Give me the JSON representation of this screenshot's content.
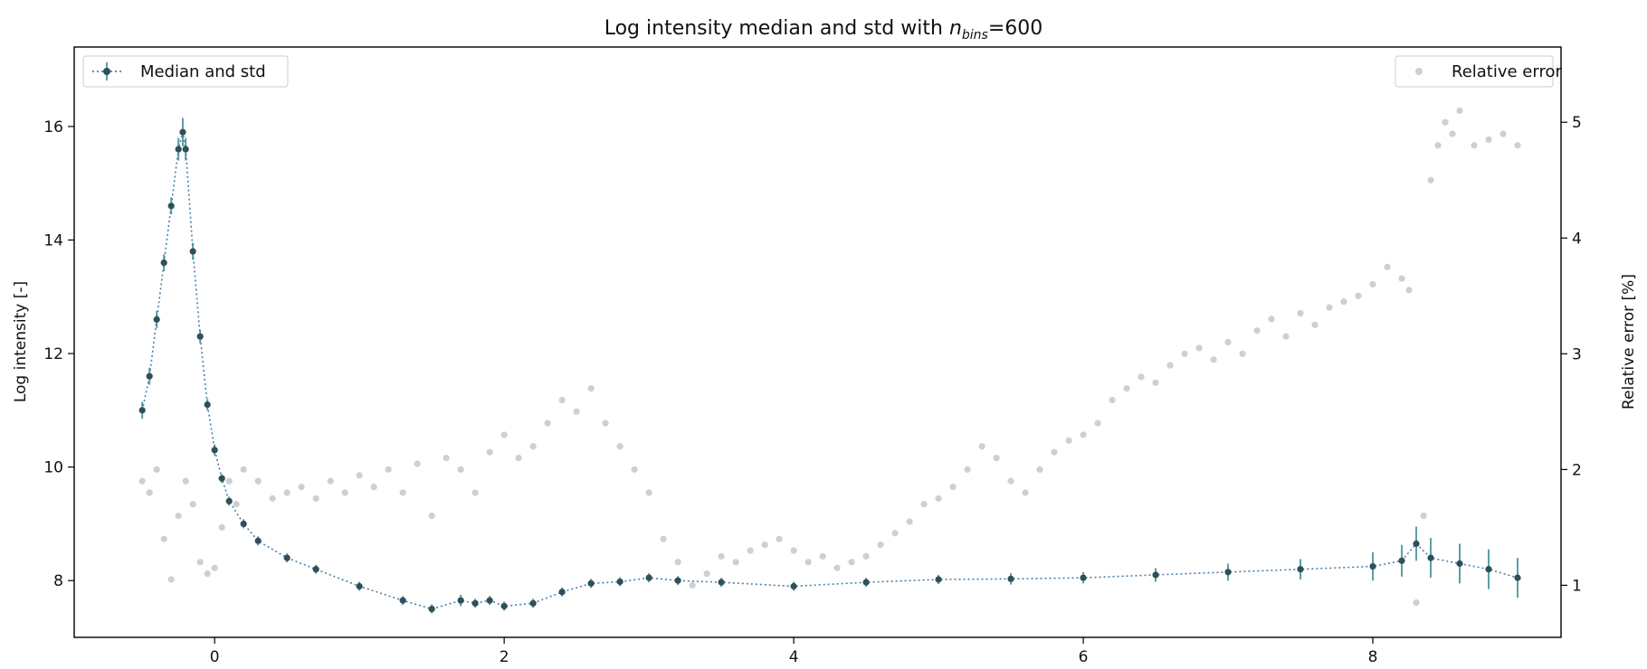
{
  "chart_data": {
    "type": "scatter",
    "title_parts": {
      "before": "Log intensity median and std with ",
      "n": "n",
      "sub": "bins",
      "after": "=600"
    },
    "xlabel": "",
    "ylabel_left": "Log intensity [-]",
    "ylabel_right": "Relative error [%]",
    "xlim": [
      -0.97,
      9.3
    ],
    "ylim_left": [
      7.0,
      17.4
    ],
    "ylim_right": [
      0.55,
      5.65
    ],
    "x_ticks": [
      0,
      2,
      4,
      6,
      8
    ],
    "x_tick_labels": [
      "0",
      "2",
      "4",
      "6",
      "8"
    ],
    "y_left_ticks": [
      8,
      10,
      12,
      14,
      16
    ],
    "y_left_tick_labels": [
      "8",
      "10",
      "12",
      "14",
      "16"
    ],
    "y_right_ticks": [
      1,
      2,
      3,
      4,
      5
    ],
    "y_right_tick_labels": [
      "1",
      "2",
      "3",
      "4",
      "5"
    ],
    "grid": false,
    "legend_left": {
      "position": "top-left",
      "label": "Median and std"
    },
    "legend_right": {
      "position": "top-right",
      "label": "Relative error"
    },
    "colors": {
      "median_marker": "#2f4f5a",
      "median_line": "#4a7fa8",
      "errorbar": "#5c9ea6",
      "relative_error": "#cfcfcf",
      "axes": "#000000"
    },
    "series": [
      {
        "name": "Median and std",
        "axis": "left",
        "x": [
          -0.5,
          -0.45,
          -0.4,
          -0.35,
          -0.3,
          -0.25,
          -0.22,
          -0.2,
          -0.15,
          -0.1,
          -0.05,
          0,
          0.05,
          0.1,
          0.2,
          0.3,
          0.5,
          0.7,
          1.0,
          1.3,
          1.5,
          1.7,
          1.8,
          1.9,
          2.0,
          2.2,
          2.4,
          2.6,
          2.8,
          3.0,
          3.2,
          3.5,
          4.0,
          4.5,
          5.0,
          5.5,
          6.0,
          6.5,
          7.0,
          7.5,
          8.0,
          8.2,
          8.3,
          8.4,
          8.6,
          8.8,
          9.0
        ],
        "y": [
          11.0,
          11.6,
          12.6,
          13.6,
          14.6,
          15.6,
          15.9,
          15.6,
          13.8,
          12.3,
          11.1,
          10.3,
          9.8,
          9.4,
          9.0,
          8.7,
          8.4,
          8.2,
          7.9,
          7.65,
          7.5,
          7.65,
          7.6,
          7.65,
          7.55,
          7.6,
          7.8,
          7.95,
          7.98,
          8.05,
          8.0,
          7.97,
          7.9,
          7.97,
          8.02,
          8.03,
          8.05,
          8.1,
          8.15,
          8.2,
          8.25,
          8.35,
          8.65,
          8.4,
          8.3,
          8.2,
          8.05
        ],
        "std": [
          0.15,
          0.15,
          0.15,
          0.15,
          0.15,
          0.2,
          0.25,
          0.2,
          0.15,
          0.12,
          0.1,
          0.1,
          0.08,
          0.08,
          0.08,
          0.08,
          0.08,
          0.08,
          0.08,
          0.08,
          0.08,
          0.1,
          0.08,
          0.08,
          0.08,
          0.08,
          0.08,
          0.08,
          0.08,
          0.08,
          0.08,
          0.08,
          0.08,
          0.08,
          0.08,
          0.1,
          0.1,
          0.12,
          0.15,
          0.18,
          0.25,
          0.28,
          0.3,
          0.35,
          0.35,
          0.35,
          0.35
        ]
      },
      {
        "name": "Relative error",
        "axis": "right",
        "x": [
          -0.5,
          -0.45,
          -0.4,
          -0.35,
          -0.3,
          -0.25,
          -0.2,
          -0.15,
          -0.1,
          -0.05,
          0,
          0.05,
          0.1,
          0.15,
          0.2,
          0.3,
          0.4,
          0.5,
          0.6,
          0.7,
          0.8,
          0.9,
          1.0,
          1.1,
          1.2,
          1.3,
          1.4,
          1.5,
          1.6,
          1.7,
          1.8,
          1.9,
          2.0,
          2.1,
          2.2,
          2.3,
          2.4,
          2.5,
          2.6,
          2.7,
          2.8,
          2.9,
          3.0,
          3.1,
          3.2,
          3.3,
          3.4,
          3.5,
          3.6,
          3.7,
          3.8,
          3.9,
          4.0,
          4.1,
          4.2,
          4.3,
          4.4,
          4.5,
          4.6,
          4.7,
          4.8,
          4.9,
          5.0,
          5.1,
          5.2,
          5.3,
          5.4,
          5.5,
          5.6,
          5.7,
          5.8,
          5.9,
          6.0,
          6.1,
          6.2,
          6.3,
          6.4,
          6.5,
          6.6,
          6.7,
          6.8,
          6.9,
          7.0,
          7.1,
          7.2,
          7.3,
          7.4,
          7.5,
          7.6,
          7.7,
          7.8,
          7.9,
          8.0,
          8.1,
          8.2,
          8.25,
          8.3,
          8.35,
          8.4,
          8.45,
          8.5,
          8.55,
          8.6,
          8.7,
          8.8,
          8.9,
          9.0
        ],
        "y": [
          1.9,
          1.8,
          2.0,
          1.4,
          1.05,
          1.6,
          1.9,
          1.7,
          1.2,
          1.1,
          1.15,
          1.5,
          1.9,
          1.7,
          2.0,
          1.9,
          1.75,
          1.8,
          1.85,
          1.75,
          1.9,
          1.8,
          1.95,
          1.85,
          2.0,
          1.8,
          2.05,
          1.6,
          2.1,
          2.0,
          1.8,
          2.15,
          2.3,
          2.1,
          2.2,
          2.4,
          2.6,
          2.5,
          2.7,
          2.4,
          2.2,
          2.0,
          1.8,
          1.4,
          1.2,
          1.0,
          1.1,
          1.25,
          1.2,
          1.3,
          1.35,
          1.4,
          1.3,
          1.2,
          1.25,
          1.15,
          1.2,
          1.25,
          1.35,
          1.45,
          1.55,
          1.7,
          1.75,
          1.85,
          2.0,
          2.2,
          2.1,
          1.9,
          1.8,
          2.0,
          2.15,
          2.25,
          2.3,
          2.4,
          2.6,
          2.7,
          2.8,
          2.75,
          2.9,
          3.0,
          3.05,
          2.95,
          3.1,
          3.0,
          3.2,
          3.3,
          3.15,
          3.35,
          3.25,
          3.4,
          3.45,
          3.5,
          3.6,
          3.75,
          3.65,
          3.55,
          0.85,
          1.6,
          4.5,
          4.8,
          5.0,
          4.9,
          5.1,
          4.8,
          4.85,
          4.9,
          4.8
        ]
      }
    ]
  }
}
